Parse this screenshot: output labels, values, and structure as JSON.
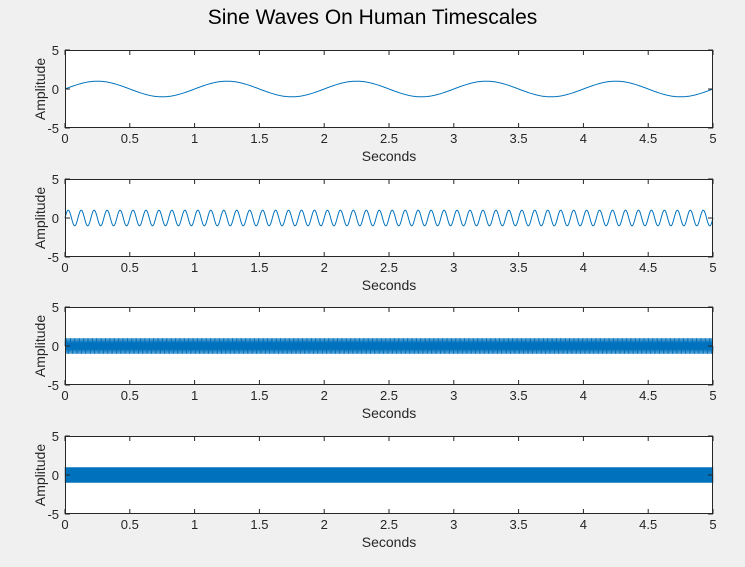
{
  "figure": {
    "title": "Sine Waves On Human Timescales"
  },
  "colors": {
    "background": "#f0f0f0",
    "axes_bg": "#ffffff",
    "axes_edge": "#262626",
    "line": "#0072bd"
  },
  "chart_data": [
    {
      "type": "line",
      "xlabel": "Seconds",
      "ylabel": "Amplitude",
      "xlim": [
        0,
        5
      ],
      "ylim": [
        -5,
        5
      ],
      "xticks": [
        "0",
        "0.5",
        "1",
        "1.5",
        "2",
        "2.5",
        "3",
        "3.5",
        "4",
        "4.5",
        "5"
      ],
      "yticks": [
        "5",
        "0",
        "-5"
      ],
      "series": [
        {
          "amplitude": 1,
          "frequency_hz": 1
        }
      ]
    },
    {
      "type": "line",
      "xlabel": "Seconds",
      "ylabel": "Amplitude",
      "xlim": [
        0,
        5
      ],
      "ylim": [
        -5,
        5
      ],
      "xticks": [
        "0",
        "0.5",
        "1",
        "1.5",
        "2",
        "2.5",
        "3",
        "3.5",
        "4",
        "4.5",
        "5"
      ],
      "yticks": [
        "5",
        "0",
        "-5"
      ],
      "series": [
        {
          "amplitude": 1,
          "frequency_hz": 10
        }
      ]
    },
    {
      "type": "line",
      "xlabel": "Seconds",
      "ylabel": "Amplitude",
      "xlim": [
        0,
        5
      ],
      "ylim": [
        -5,
        5
      ],
      "xticks": [
        "0",
        "0.5",
        "1",
        "1.5",
        "2",
        "2.5",
        "3",
        "3.5",
        "4",
        "4.5",
        "5"
      ],
      "yticks": [
        "5",
        "0",
        "-5"
      ],
      "series": [
        {
          "amplitude": 1,
          "frequency_hz": 100
        }
      ]
    },
    {
      "type": "line",
      "xlabel": "Seconds",
      "ylabel": "Amplitude",
      "xlim": [
        0,
        5
      ],
      "ylim": [
        -5,
        5
      ],
      "xticks": [
        "0",
        "0.5",
        "1",
        "1.5",
        "2",
        "2.5",
        "3",
        "3.5",
        "4",
        "4.5",
        "5"
      ],
      "yticks": [
        "5",
        "0",
        "-5"
      ],
      "series": [
        {
          "amplitude": 1,
          "frequency_hz": 1000
        }
      ]
    }
  ]
}
